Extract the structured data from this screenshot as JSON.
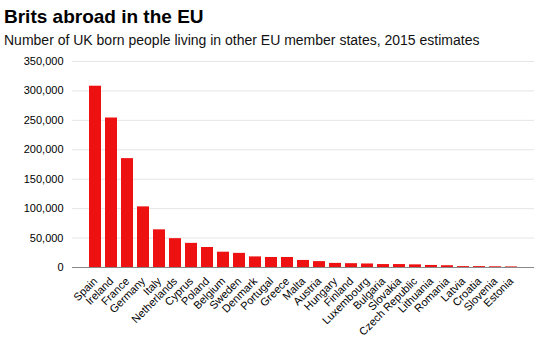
{
  "chart_data": {
    "type": "bar",
    "title": "Brits abroad in the EU",
    "subtitle": "Number of UK born people living in other EU member states, 2015 estimates",
    "categories": [
      "Spain",
      "Ireland",
      "France",
      "Germany",
      "Italy",
      "Netherlands",
      "Cyprus",
      "Poland",
      "Belgium",
      "Sweden",
      "Denmark",
      "Portugal",
      "Greece",
      "Malta",
      "Austria",
      "Hungary",
      "Finland",
      "Luxembourg",
      "Bulgaria",
      "Slovakia",
      "Czech Republic",
      "Lithuania",
      "Romania",
      "Latvia",
      "Croatia",
      "Slovenia",
      "Estonia"
    ],
    "values": [
      308000,
      254000,
      185000,
      103000,
      64000,
      49000,
      41000,
      34000,
      26000,
      24000,
      18000,
      17000,
      17000,
      12000,
      10000,
      7000,
      6500,
      6000,
      5000,
      5000,
      4500,
      3500,
      3000,
      1500,
      1500,
      1200,
      1000
    ],
    "color": "#ee1111",
    "ylim": [
      0,
      350000
    ],
    "yticks": [
      0,
      {
        "value": 50000,
        "label": "50,000"
      },
      {
        "value": 100000,
        "label": "100,000"
      },
      {
        "value": 150000,
        "label": "150,000"
      },
      {
        "value": 200000,
        "label": "200,000"
      },
      {
        "value": 250000,
        "label": "250,000"
      },
      {
        "value": 300000,
        "label": "300,000"
      },
      {
        "value": 350000,
        "label": "350,000"
      }
    ],
    "grid": true
  }
}
